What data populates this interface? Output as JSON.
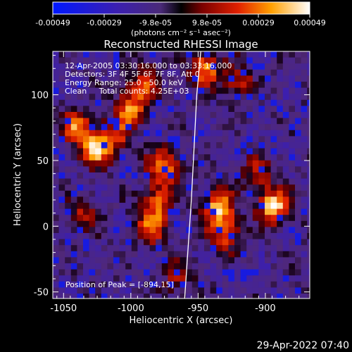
{
  "chart_data": {
    "type": "heatmap",
    "title": "Reconstructed RHESSI Image",
    "xlabel": "Heliocentric X (arcsec)",
    "ylabel": "Heliocentric Y (arcsec)",
    "xlim": [
      -1058,
      -867
    ],
    "ylim": [
      -55,
      133
    ],
    "x_ticks": [
      "-1050",
      "-1000",
      "-950",
      "-900"
    ],
    "x_tick_values": [
      -1050,
      -1000,
      -950,
      -900
    ],
    "y_ticks": [
      "-50",
      "0",
      "50",
      "100"
    ],
    "y_tick_values": [
      -50,
      0,
      50,
      100
    ],
    "colorbar": {
      "tick_labels": [
        "-0.00049",
        "-0.00029",
        "-9.8e-05",
        "9.8e-05",
        "0.00029",
        "0.00049"
      ],
      "range": [
        -0.00049,
        0.00049
      ],
      "units": "(photons cm⁻² s⁻¹ asec⁻²)"
    },
    "annotations": [
      "12-Apr-2005 03:30:16.000 to 03:33:16.000",
      "Detectors: 3F 4F 5F 6F 7F 8F, Att 0",
      "Energy Range: 25.0 - 50.0 keV",
      "Clean     Total counts: 4.25E+03"
    ],
    "peak_label": "Position of Peak = [-894,15]",
    "peak": [
      -894,
      15
    ],
    "limb_curve": [
      [
        -960,
        -55
      ],
      [
        -955,
        20
      ],
      [
        -953,
        60
      ],
      [
        -951,
        100
      ],
      [
        -948,
        133
      ]
    ],
    "hotspots": [
      {
        "x": -1025,
        "y": 60,
        "amp": 1.0
      },
      {
        "x": -1040,
        "y": 75,
        "amp": 0.7
      },
      {
        "x": -1000,
        "y": 90,
        "amp": 0.75
      },
      {
        "x": -990,
        "y": 110,
        "amp": 0.6
      },
      {
        "x": -975,
        "y": 45,
        "amp": 0.85
      },
      {
        "x": -980,
        "y": 20,
        "amp": 0.6
      },
      {
        "x": -985,
        "y": 0,
        "amp": 0.7
      },
      {
        "x": -945,
        "y": 120,
        "amp": 0.8
      },
      {
        "x": -920,
        "y": 110,
        "amp": 0.5
      },
      {
        "x": -935,
        "y": 15,
        "amp": 0.9
      },
      {
        "x": -930,
        "y": -5,
        "amp": 0.7
      },
      {
        "x": -894,
        "y": 15,
        "amp": 1.0
      },
      {
        "x": -905,
        "y": 40,
        "amp": 0.5
      },
      {
        "x": -1035,
        "y": 10,
        "amp": 0.45
      },
      {
        "x": -1010,
        "y": 70,
        "amp": 0.5
      },
      {
        "x": -965,
        "y": -40,
        "amp": 0.4
      }
    ],
    "grid": false
  },
  "footer": {
    "timestamp": "29-Apr-2022 07:40"
  }
}
